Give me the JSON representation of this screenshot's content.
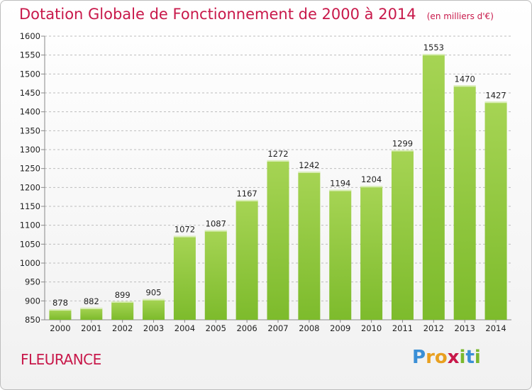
{
  "title": "Dotation Globale de Fonctionnement de 2000 à 2014",
  "subtitle": "(en milliers d'€)",
  "city": "FLEURANCE",
  "logo": {
    "letters": [
      "P",
      "r",
      "o",
      "x",
      "i",
      "t",
      "i"
    ],
    "colors": [
      "#3a8fd6",
      "#e8a020",
      "#e8a020",
      "#c8184a",
      "#7ab82e",
      "#3a8fd6",
      "#7ab82e"
    ]
  },
  "colors": {
    "bar": "#7dbb2c",
    "bar_light": "#a6d454",
    "title": "#c8184a",
    "grid": "#bdbdbd"
  },
  "chart_data": {
    "type": "bar",
    "categories": [
      "2000",
      "2001",
      "2002",
      "2003",
      "2004",
      "2005",
      "2006",
      "2007",
      "2008",
      "2009",
      "2010",
      "2011",
      "2012",
      "2013",
      "2014"
    ],
    "values": [
      878,
      882,
      899,
      905,
      1072,
      1087,
      1167,
      1272,
      1242,
      1194,
      1204,
      1299,
      1553,
      1470,
      1427
    ],
    "ylim": [
      850,
      1600
    ],
    "yticks": [
      850,
      900,
      950,
      1000,
      1050,
      1100,
      1150,
      1200,
      1250,
      1300,
      1350,
      1400,
      1450,
      1500,
      1550,
      1600
    ],
    "grid": true
  }
}
